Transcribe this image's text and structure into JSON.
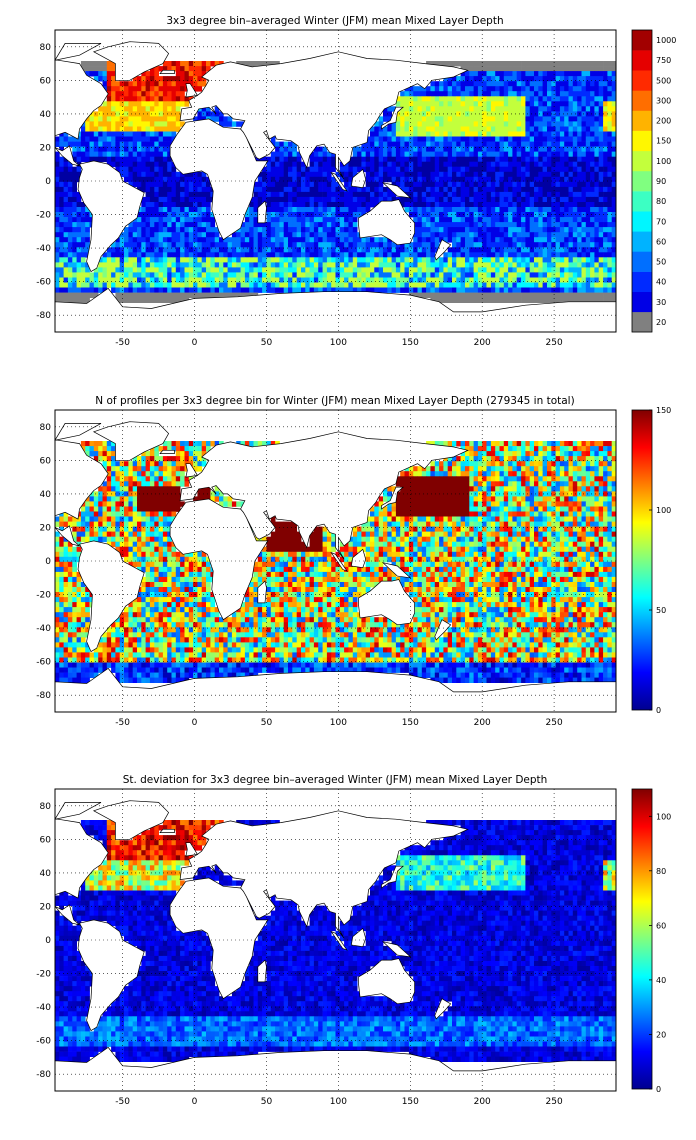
{
  "panels": [
    {
      "title": "3x3 degree bin–averaged Winter (JFM) mean Mixed Layer Depth",
      "field": "mld",
      "colorbar": {
        "kind": "categorical",
        "labels": [
          "20",
          "30",
          "40",
          "50",
          "60",
          "70",
          "80",
          "90",
          "100",
          "150",
          "200",
          "300",
          "500",
          "750",
          "1000"
        ],
        "lowest_color": "#808080"
      }
    },
    {
      "title": "N of profiles per 3x3 degree bin for Winter (JFM) mean Mixed Layer Depth  (279345 in total)",
      "field": "count",
      "colorbar": {
        "kind": "continuous",
        "min": 0,
        "max": 150,
        "ticks": [
          0,
          50,
          100,
          150
        ]
      }
    },
    {
      "title": "St. deviation for 3x3 degree bin–averaged Winter (JFM) mean Mixed Layer Depth",
      "field": "std",
      "colorbar": {
        "kind": "continuous",
        "min": 0,
        "max": 110,
        "ticks": [
          0,
          20,
          40,
          60,
          80,
          100
        ]
      }
    }
  ],
  "axes": {
    "x_ticks": [
      -50,
      0,
      50,
      100,
      150,
      200,
      250
    ],
    "y_ticks": [
      80,
      60,
      40,
      20,
      0,
      -20,
      -40,
      -60,
      -80
    ],
    "x_range": [
      -97,
      293
    ],
    "y_range": [
      -90,
      90
    ],
    "grid": "dotted"
  },
  "colors": {
    "land": "#ffffff",
    "missing": "#808080",
    "coast": "#000000"
  }
}
